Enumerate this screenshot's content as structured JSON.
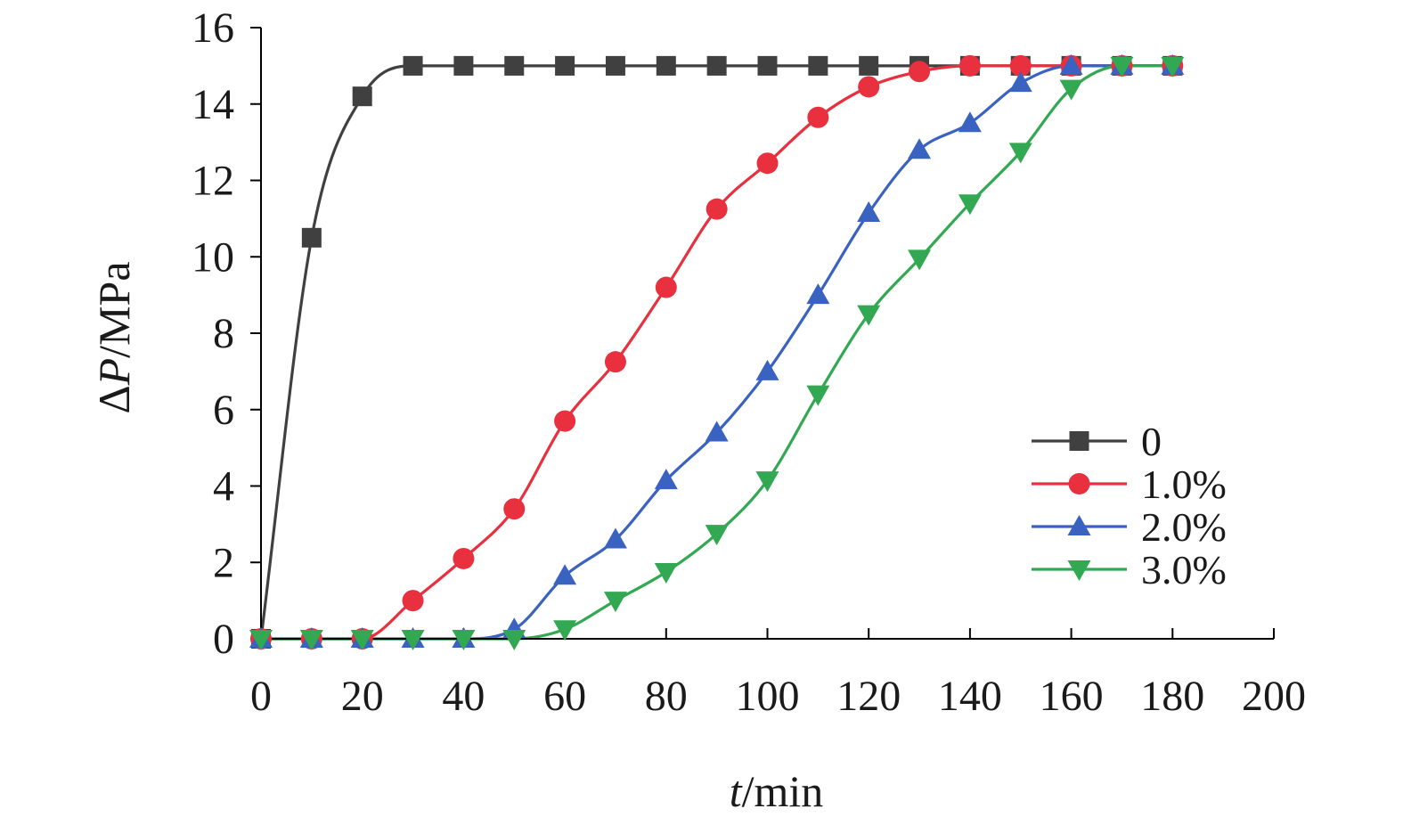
{
  "chart_data": {
    "type": "line",
    "title": "",
    "xlabel": {
      "italic": "t",
      "rest": "/min"
    },
    "ylabel": {
      "prefix": "Δ",
      "italic": "P",
      "rest": "/MPa"
    },
    "xlim": [
      0,
      200
    ],
    "ylim": [
      0,
      16
    ],
    "xticks": [
      "0",
      "20",
      "40",
      "60",
      "80",
      "100",
      "120",
      "140",
      "160",
      "180",
      "200"
    ],
    "yticks": [
      "0",
      "2",
      "4",
      "6",
      "8",
      "10",
      "12",
      "14",
      "16"
    ],
    "grid": false,
    "legend_position": "right",
    "x": [
      0,
      10,
      20,
      30,
      40,
      50,
      60,
      70,
      80,
      90,
      100,
      110,
      120,
      130,
      140,
      150,
      160,
      170,
      180
    ],
    "series": [
      {
        "name": "0",
        "color": "#404040",
        "marker": "square",
        "values": [
          0,
          10.5,
          14.2,
          15.0,
          15.0,
          15.0,
          15.0,
          15.0,
          15.0,
          15.0,
          15.0,
          15.0,
          15.0,
          15.0,
          15.0,
          15.0,
          15.0,
          15.0,
          15.0
        ]
      },
      {
        "name": "1.0%",
        "color": "#e8303f",
        "marker": "circle",
        "values": [
          0,
          0,
          0,
          1.0,
          2.1,
          3.4,
          5.7,
          7.25,
          9.2,
          11.25,
          12.45,
          13.65,
          14.45,
          14.85,
          15.0,
          15.0,
          15.0,
          15.0,
          15.0
        ]
      },
      {
        "name": "2.0%",
        "color": "#3a62c0",
        "marker": "triangle-up",
        "values": [
          0,
          0,
          0,
          0,
          0,
          0.25,
          1.65,
          2.6,
          4.15,
          5.4,
          7.0,
          9.0,
          11.15,
          12.8,
          13.5,
          14.55,
          15.0,
          15.0,
          15.0
        ]
      },
      {
        "name": "3.0%",
        "color": "#33a852",
        "marker": "triangle-down",
        "values": [
          0,
          0,
          0,
          0,
          0,
          0,
          0.25,
          1.0,
          1.75,
          2.75,
          4.15,
          6.4,
          8.5,
          9.95,
          11.4,
          12.75,
          14.4,
          15.0,
          15.0
        ]
      }
    ]
  }
}
